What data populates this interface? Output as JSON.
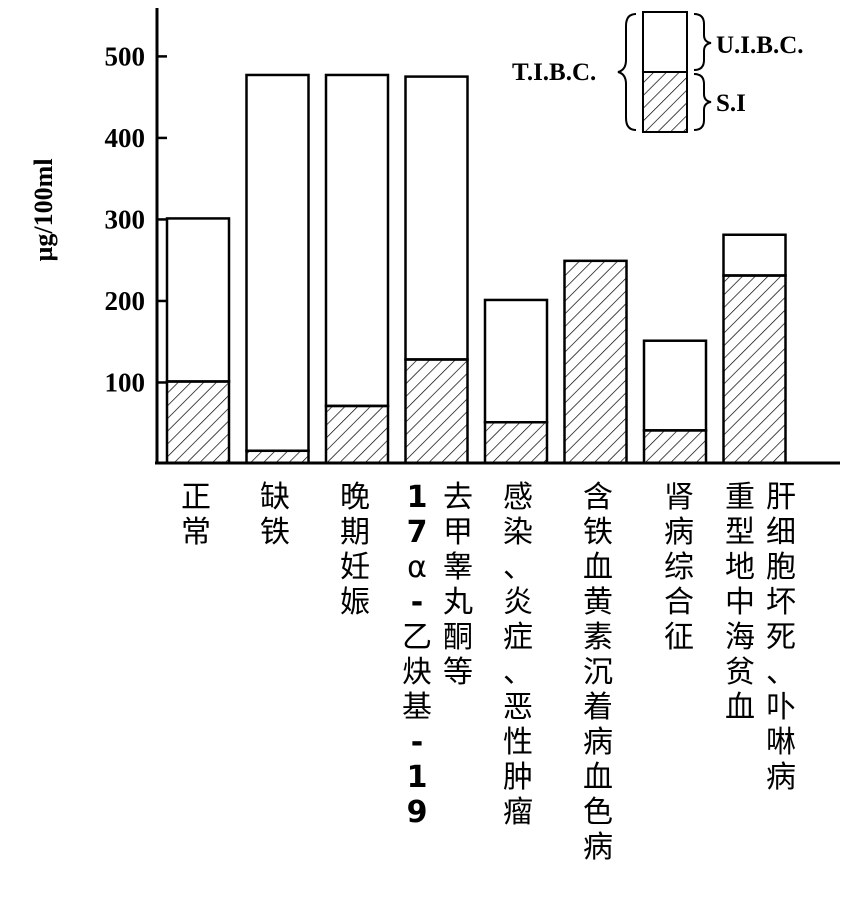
{
  "chart_data": {
    "type": "bar",
    "stacked": true,
    "ylabel": "µg/100ml",
    "yticks": [
      100,
      200,
      300,
      400,
      500
    ],
    "categories": [
      {
        "lines": [
          "正常"
        ]
      },
      {
        "lines": [
          "缺铁"
        ]
      },
      {
        "lines": [
          "晚期妊娠"
        ]
      },
      {
        "lines": [
          "17α-乙炔基-19",
          "去甲睾丸酮等"
        ]
      },
      {
        "lines": [
          "感染、炎症、恶性肿瘤"
        ]
      },
      {
        "lines": [
          "含铁血黄素沉着病血色病"
        ]
      },
      {
        "lines": [
          "肾病综合征"
        ]
      },
      {
        "lines": [
          "重型地中海贫血",
          "肝细胞坏死、卟啉病"
        ]
      }
    ],
    "series": [
      {
        "name": "S.I",
        "pattern": "hatched",
        "values": [
          100,
          15,
          70,
          127,
          50,
          248,
          40,
          230
        ]
      },
      {
        "name": "U.I.B.C.",
        "pattern": "open",
        "values": [
          200,
          461,
          406,
          347,
          150,
          0,
          110,
          50
        ]
      }
    ],
    "legend": {
      "total_label": "T.I.B.C.",
      "upper_label": "U.I.B.C.",
      "lower_label": "S.I",
      "position": "top-right"
    }
  }
}
